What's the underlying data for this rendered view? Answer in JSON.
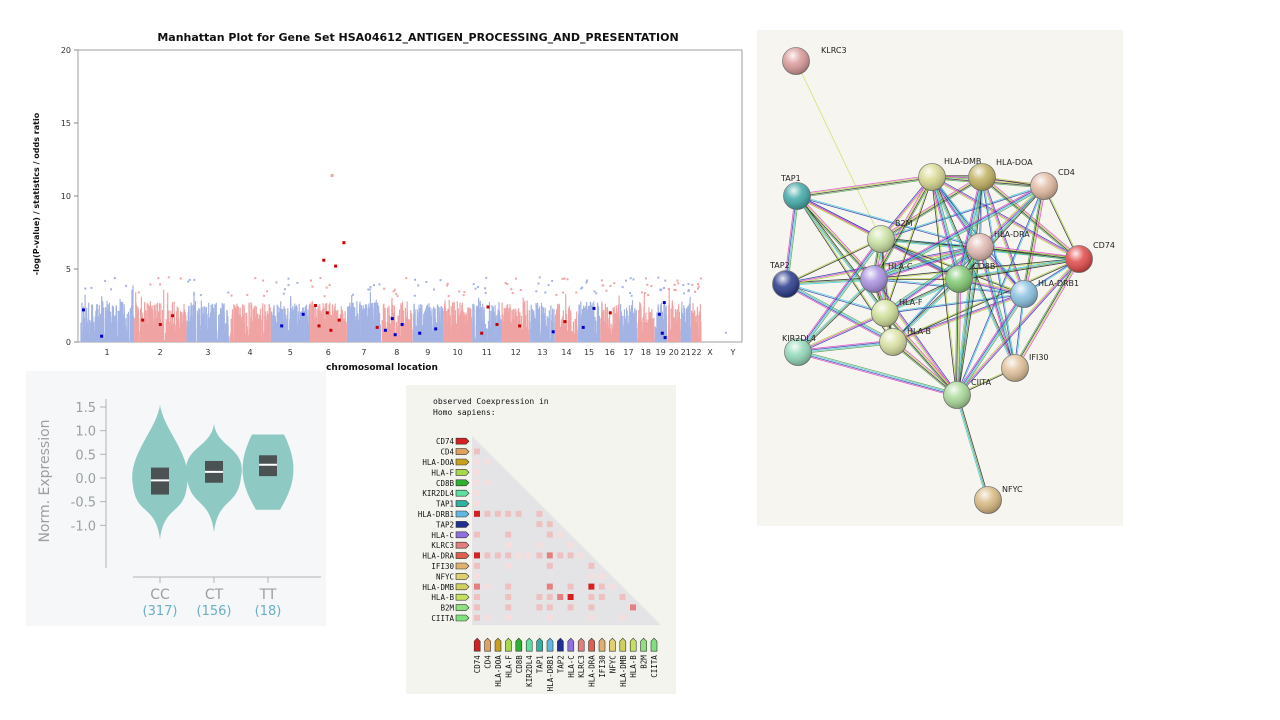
{
  "manhattan": {
    "chart_data": {
      "type": "scatter",
      "title": "Manhattan Plot for Gene Set HSA04612_ANTIGEN_PROCESSING_AND_PRESENTATION",
      "xlabel": "chromosomal location",
      "ylabel": "-log(P-value) / statistics / odds ratio",
      "ylim": [
        0,
        20
      ],
      "yticks": [
        0,
        5,
        10,
        15,
        20
      ],
      "chromosomes": [
        "1",
        "2",
        "3",
        "4",
        "5",
        "6",
        "7",
        "8",
        "9",
        "10",
        "11",
        "12",
        "13",
        "14",
        "15",
        "16",
        "17",
        "18",
        "19",
        "20",
        "21",
        "22",
        "X",
        "Y"
      ],
      "chrom_colors": {
        "odd": "#a3b4e4",
        "even": "#f0a3a3"
      },
      "highlight_points": [
        {
          "chrom": "1",
          "y": 2.2,
          "color": "#0000cc"
        },
        {
          "chrom": "1",
          "y": 0.4,
          "color": "#0000cc"
        },
        {
          "chrom": "2",
          "y": 1.8,
          "color": "#cc0000"
        },
        {
          "chrom": "2",
          "y": 1.5,
          "color": "#cc0000"
        },
        {
          "chrom": "2",
          "y": 1.2,
          "color": "#cc0000"
        },
        {
          "chrom": "5",
          "y": 1.9,
          "color": "#0000cc"
        },
        {
          "chrom": "5",
          "y": 1.1,
          "color": "#0000cc"
        },
        {
          "chrom": "6",
          "y": 11.4,
          "color": "#f0a3a3"
        },
        {
          "chrom": "6",
          "y": 6.8,
          "color": "#cc0000"
        },
        {
          "chrom": "6",
          "y": 5.6,
          "color": "#cc0000"
        },
        {
          "chrom": "6",
          "y": 5.2,
          "color": "#cc0000"
        },
        {
          "chrom": "6",
          "y": 2.5,
          "color": "#cc0000"
        },
        {
          "chrom": "6",
          "y": 2.0,
          "color": "#cc0000"
        },
        {
          "chrom": "6",
          "y": 1.5,
          "color": "#cc0000"
        },
        {
          "chrom": "6",
          "y": 1.1,
          "color": "#cc0000"
        },
        {
          "chrom": "6",
          "y": 0.8,
          "color": "#cc0000"
        },
        {
          "chrom": "7",
          "y": 1.0,
          "color": "#cc0000"
        },
        {
          "chrom": "8",
          "y": 1.6,
          "color": "#0000cc"
        },
        {
          "chrom": "8",
          "y": 1.2,
          "color": "#0000cc"
        },
        {
          "chrom": "8",
          "y": 0.8,
          "color": "#0000cc"
        },
        {
          "chrom": "8",
          "y": 0.5,
          "color": "#0000cc"
        },
        {
          "chrom": "9",
          "y": 0.9,
          "color": "#0000cc"
        },
        {
          "chrom": "9",
          "y": 0.6,
          "color": "#0000cc"
        },
        {
          "chrom": "11",
          "y": 2.4,
          "color": "#cc0000"
        },
        {
          "chrom": "11",
          "y": 1.2,
          "color": "#cc0000"
        },
        {
          "chrom": "11",
          "y": 0.6,
          "color": "#cc0000"
        },
        {
          "chrom": "12",
          "y": 1.1,
          "color": "#cc0000"
        },
        {
          "chrom": "13",
          "y": 0.7,
          "color": "#0000cc"
        },
        {
          "chrom": "14",
          "y": 1.4,
          "color": "#cc0000"
        },
        {
          "chrom": "15",
          "y": 2.3,
          "color": "#0000cc"
        },
        {
          "chrom": "15",
          "y": 1.0,
          "color": "#0000cc"
        },
        {
          "chrom": "16",
          "y": 2.0,
          "color": "#cc0000"
        },
        {
          "chrom": "19",
          "y": 2.7,
          "color": "#0000cc"
        },
        {
          "chrom": "19",
          "y": 1.9,
          "color": "#0000cc"
        },
        {
          "chrom": "19",
          "y": 0.6,
          "color": "#0000cc"
        },
        {
          "chrom": "19",
          "y": 0.3,
          "color": "#0000cc"
        }
      ]
    }
  },
  "violin": {
    "chart_data": {
      "type": "violin",
      "ylabel": "Norm. Expression",
      "ylim": [
        -1.5,
        1.6
      ],
      "yticks": [
        "1.5",
        "1.0",
        "0.5",
        "0.0",
        "-0.5",
        "-1.0"
      ],
      "groups": [
        {
          "label": "CC",
          "n": "(317)",
          "median": -0.05,
          "q1": -0.35,
          "q3": 0.22,
          "min": -1.3,
          "max": 1.55
        },
        {
          "label": "CT",
          "n": "(156)",
          "median": 0.13,
          "q1": -0.1,
          "q3": 0.36,
          "min": -1.15,
          "max": 1.15
        },
        {
          "label": "TT",
          "n": "(18)",
          "median": 0.28,
          "q1": 0.04,
          "q3": 0.48,
          "min": -0.67,
          "max": 0.92
        }
      ],
      "fill_color": "#8ec9c3",
      "box_color": "#4a5254",
      "axis_text_color": "#9aa0a2",
      "n_color": "#6ab0c8"
    }
  },
  "coexpression": {
    "header_line1": "observed Coexpression in",
    "header_line2": "Homo sapiens:",
    "chart_data": {
      "type": "heatmap",
      "genes": [
        "CD74",
        "CD4",
        "HLA-DOA",
        "HLA-F",
        "CD8B",
        "KIR2DL4",
        "TAP1",
        "HLA-DRB1",
        "TAP2",
        "HLA-C",
        "KLRC3",
        "HLA-DRA",
        "IFI30",
        "NFYC",
        "HLA-DMB",
        "HLA-B",
        "B2M",
        "CIITA"
      ],
      "gene_colors": [
        "#d42020",
        "#e0a060",
        "#c8a020",
        "#a8d850",
        "#30b030",
        "#60e0a0",
        "#30b0a0",
        "#60b8e0",
        "#203090",
        "#9070e0",
        "#e08080",
        "#e06050",
        "#e0b070",
        "#e0d070",
        "#d0d060",
        "#c8e060",
        "#90e080",
        "#80e080"
      ],
      "strength_colors": [
        "#f6dede",
        "#efc0c0",
        "#e68080",
        "#d42020"
      ],
      "cells": [
        {
          "r": 1,
          "c": 0,
          "s": 1
        },
        {
          "r": 2,
          "c": 0,
          "s": 0
        },
        {
          "r": 2,
          "c": 1,
          "s": 0
        },
        {
          "r": 3,
          "c": 0,
          "s": 0
        },
        {
          "r": 4,
          "c": 0,
          "s": 0
        },
        {
          "r": 4,
          "c": 1,
          "s": 0
        },
        {
          "r": 5,
          "c": 0,
          "s": 0
        },
        {
          "r": 6,
          "c": 0,
          "s": 0
        },
        {
          "r": 7,
          "c": 0,
          "s": 3
        },
        {
          "r": 7,
          "c": 1,
          "s": 1
        },
        {
          "r": 7,
          "c": 2,
          "s": 1
        },
        {
          "r": 7,
          "c": 3,
          "s": 1
        },
        {
          "r": 7,
          "c": 4,
          "s": 1
        },
        {
          "r": 7,
          "c": 6,
          "s": 1
        },
        {
          "r": 8,
          "c": 6,
          "s": 1
        },
        {
          "r": 8,
          "c": 7,
          "s": 1
        },
        {
          "r": 9,
          "c": 0,
          "s": 1
        },
        {
          "r": 9,
          "c": 3,
          "s": 1
        },
        {
          "r": 9,
          "c": 7,
          "s": 1
        },
        {
          "r": 9,
          "c": 8,
          "s": 0
        },
        {
          "r": 10,
          "c": 3,
          "s": 0
        },
        {
          "r": 10,
          "c": 6,
          "s": 0
        },
        {
          "r": 10,
          "c": 9,
          "s": 0
        },
        {
          "r": 11,
          "c": 0,
          "s": 3
        },
        {
          "r": 11,
          "c": 1,
          "s": 1
        },
        {
          "r": 11,
          "c": 2,
          "s": 1
        },
        {
          "r": 11,
          "c": 3,
          "s": 1
        },
        {
          "r": 11,
          "c": 4,
          "s": 0
        },
        {
          "r": 11,
          "c": 5,
          "s": 0
        },
        {
          "r": 11,
          "c": 6,
          "s": 1
        },
        {
          "r": 11,
          "c": 7,
          "s": 2
        },
        {
          "r": 11,
          "c": 8,
          "s": 1
        },
        {
          "r": 11,
          "c": 9,
          "s": 1
        },
        {
          "r": 11,
          "c": 10,
          "s": 0
        },
        {
          "r": 12,
          "c": 0,
          "s": 1
        },
        {
          "r": 12,
          "c": 3,
          "s": 0
        },
        {
          "r": 12,
          "c": 7,
          "s": 1
        },
        {
          "r": 12,
          "c": 11,
          "s": 1
        },
        {
          "r": 13,
          "c": 0,
          "s": 0
        },
        {
          "r": 13,
          "c": 11,
          "s": 0
        },
        {
          "r": 13,
          "c": 12,
          "s": 0
        },
        {
          "r": 14,
          "c": 0,
          "s": 2
        },
        {
          "r": 14,
          "c": 1,
          "s": 0
        },
        {
          "r": 14,
          "c": 3,
          "s": 1
        },
        {
          "r": 14,
          "c": 7,
          "s": 2
        },
        {
          "r": 14,
          "c": 9,
          "s": 1
        },
        {
          "r": 14,
          "c": 11,
          "s": 3
        },
        {
          "r": 14,
          "c": 12,
          "s": 1
        },
        {
          "r": 14,
          "c": 13,
          "s": 0
        },
        {
          "r": 15,
          "c": 0,
          "s": 1
        },
        {
          "r": 15,
          "c": 3,
          "s": 1
        },
        {
          "r": 15,
          "c": 6,
          "s": 1
        },
        {
          "r": 15,
          "c": 7,
          "s": 1
        },
        {
          "r": 15,
          "c": 8,
          "s": 2
        },
        {
          "r": 15,
          "c": 9,
          "s": 3
        },
        {
          "r": 15,
          "c": 11,
          "s": 1
        },
        {
          "r": 15,
          "c": 12,
          "s": 1
        },
        {
          "r": 15,
          "c": 14,
          "s": 1
        },
        {
          "r": 16,
          "c": 0,
          "s": 1
        },
        {
          "r": 16,
          "c": 3,
          "s": 1
        },
        {
          "r": 16,
          "c": 6,
          "s": 1
        },
        {
          "r": 16,
          "c": 7,
          "s": 1
        },
        {
          "r": 16,
          "c": 9,
          "s": 1
        },
        {
          "r": 16,
          "c": 11,
          "s": 1
        },
        {
          "r": 16,
          "c": 15,
          "s": 2
        },
        {
          "r": 17,
          "c": 0,
          "s": 1
        },
        {
          "r": 17,
          "c": 1,
          "s": 0
        },
        {
          "r": 17,
          "c": 3,
          "s": 0
        },
        {
          "r": 17,
          "c": 7,
          "s": 0
        },
        {
          "r": 17,
          "c": 11,
          "s": 0
        },
        {
          "r": 17,
          "c": 14,
          "s": 0
        }
      ]
    }
  },
  "network": {
    "chart_data": {
      "type": "network",
      "nodes": [
        {
          "id": "KLRC3",
          "color": "#d89898"
        },
        {
          "id": "TAP1",
          "color": "#40a8a8"
        },
        {
          "id": "HLA-DMB",
          "color": "#d8d890"
        },
        {
          "id": "HLA-DOA",
          "color": "#c0b060"
        },
        {
          "id": "CD4",
          "color": "#e0b8a0"
        },
        {
          "id": "B2M",
          "color": "#c8e0a0"
        },
        {
          "id": "HLA-DRA",
          "color": "#e0b8b0"
        },
        {
          "id": "CD74",
          "color": "#e04848"
        },
        {
          "id": "TAP2",
          "color": "#283888"
        },
        {
          "id": "HLA-C",
          "color": "#a890e0"
        },
        {
          "id": "CD8B",
          "color": "#80c870"
        },
        {
          "id": "HLA-DRB1",
          "color": "#88c0e0"
        },
        {
          "id": "HLA-F",
          "color": "#d0e098"
        },
        {
          "id": "HLA-B",
          "color": "#d8e0a0"
        },
        {
          "id": "KIR2DL4",
          "color": "#90d8b8"
        },
        {
          "id": "IFI30",
          "color": "#e0c098"
        },
        {
          "id": "CIITA",
          "color": "#a8d898"
        },
        {
          "id": "NFYC",
          "color": "#d8b880"
        }
      ],
      "edges": [
        [
          "KLRC3",
          "B2M"
        ],
        [
          "TAP1",
          "B2M"
        ],
        [
          "TAP1",
          "HLA-C"
        ],
        [
          "TAP1",
          "HLA-B"
        ],
        [
          "TAP1",
          "HLA-F"
        ],
        [
          "TAP1",
          "TAP2"
        ],
        [
          "TAP1",
          "HLA-DRA"
        ],
        [
          "TAP1",
          "CD8B"
        ],
        [
          "TAP1",
          "HLA-DMB"
        ],
        [
          "TAP2",
          "B2M"
        ],
        [
          "TAP2",
          "HLA-C"
        ],
        [
          "TAP2",
          "HLA-B"
        ],
        [
          "TAP2",
          "HLA-F"
        ],
        [
          "TAP2",
          "HLA-DRA"
        ],
        [
          "B2M",
          "HLA-C"
        ],
        [
          "B2M",
          "HLA-B"
        ],
        [
          "B2M",
          "HLA-F"
        ],
        [
          "B2M",
          "CD8B"
        ],
        [
          "B2M",
          "HLA-DRA"
        ],
        [
          "B2M",
          "HLA-DMB"
        ],
        [
          "B2M",
          "HLA-DOA"
        ],
        [
          "B2M",
          "HLA-DRB1"
        ],
        [
          "B2M",
          "CD74"
        ],
        [
          "B2M",
          "KIR2DL4"
        ],
        [
          "B2M",
          "CD4"
        ],
        [
          "HLA-C",
          "HLA-B"
        ],
        [
          "HLA-C",
          "HLA-F"
        ],
        [
          "HLA-C",
          "CD8B"
        ],
        [
          "HLA-C",
          "KIR2DL4"
        ],
        [
          "HLA-C",
          "HLA-DRA"
        ],
        [
          "HLA-C",
          "HLA-DRB1"
        ],
        [
          "HLA-C",
          "CIITA"
        ],
        [
          "HLA-C",
          "HLA-DMB"
        ],
        [
          "HLA-B",
          "HLA-F"
        ],
        [
          "HLA-B",
          "CD8B"
        ],
        [
          "HLA-B",
          "KIR2DL4"
        ],
        [
          "HLA-B",
          "HLA-DRA"
        ],
        [
          "HLA-B",
          "HLA-DRB1"
        ],
        [
          "HLA-B",
          "CIITA"
        ],
        [
          "HLA-B",
          "CD74"
        ],
        [
          "HLA-F",
          "CD8B"
        ],
        [
          "HLA-F",
          "HLA-DRA"
        ],
        [
          "HLA-F",
          "HLA-DRB1"
        ],
        [
          "HLA-F",
          "KIR2DL4"
        ],
        [
          "HLA-F",
          "CIITA"
        ],
        [
          "HLA-F",
          "HLA-DMB"
        ],
        [
          "HLA-DMB",
          "HLA-DOA"
        ],
        [
          "HLA-DMB",
          "HLA-DRA"
        ],
        [
          "HLA-DMB",
          "HLA-DRB1"
        ],
        [
          "HLA-DMB",
          "CD74"
        ],
        [
          "HLA-DMB",
          "CD4"
        ],
        [
          "HLA-DMB",
          "CIITA"
        ],
        [
          "HLA-DMB",
          "IFI30"
        ],
        [
          "HLA-DMB",
          "CD8B"
        ],
        [
          "HLA-DOA",
          "HLA-DRA"
        ],
        [
          "HLA-DOA",
          "HLA-DRB1"
        ],
        [
          "HLA-DOA",
          "CD74"
        ],
        [
          "HLA-DOA",
          "CD4"
        ],
        [
          "HLA-DOA",
          "CIITA"
        ],
        [
          "HLA-DOA",
          "CD8B"
        ],
        [
          "HLA-DOA",
          "IFI30"
        ],
        [
          "CD4",
          "HLA-DRA"
        ],
        [
          "CD4",
          "HLA-DRB1"
        ],
        [
          "CD4",
          "CD74"
        ],
        [
          "CD4",
          "CD8B"
        ],
        [
          "CD4",
          "HLA-C"
        ],
        [
          "CD4",
          "CIITA"
        ],
        [
          "HLA-DRA",
          "HLA-DRB1"
        ],
        [
          "HLA-DRA",
          "CD74"
        ],
        [
          "HLA-DRA",
          "CD8B"
        ],
        [
          "HLA-DRA",
          "CIITA"
        ],
        [
          "HLA-DRA",
          "IFI30"
        ],
        [
          "CD74",
          "HLA-DRB1"
        ],
        [
          "CD74",
          "CIITA"
        ],
        [
          "CD74",
          "IFI30"
        ],
        [
          "CD74",
          "HLA-C"
        ],
        [
          "CD74",
          "CD8B"
        ],
        [
          "HLA-DRB1",
          "CIITA"
        ],
        [
          "HLA-DRB1",
          "IFI30"
        ],
        [
          "HLA-DRB1",
          "CD8B"
        ],
        [
          "CD8B",
          "CIITA"
        ],
        [
          "CIITA",
          "IFI30"
        ],
        [
          "CIITA",
          "NFYC"
        ],
        [
          "KIR2DL4",
          "CIITA"
        ]
      ]
    }
  }
}
